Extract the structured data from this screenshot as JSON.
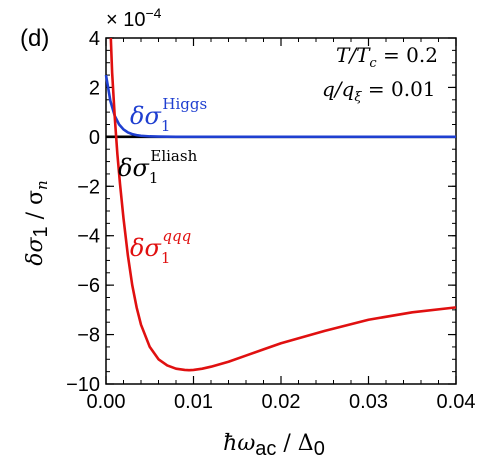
{
  "chart_data": {
    "type": "line",
    "panel_label": "(d)",
    "y_multiplier": "× 10",
    "y_multiplier_exp": "−4",
    "xlabel": "ħω",
    "xlabel_sub": "ac",
    "xlabel_rest": " / Δ",
    "xlabel_sub2": "0",
    "ylabel": "δσ",
    "ylabel_sub": "1",
    "ylabel_rest": " / σ",
    "ylabel_sub2": "n",
    "xlim": [
      0,
      0.04
    ],
    "ylim": [
      -10,
      4
    ],
    "x_ticks": [
      "0.00",
      "0.01",
      "0.02",
      "0.03",
      "0.04"
    ],
    "x_tick_values": [
      0,
      0.01,
      0.02,
      0.03,
      0.04
    ],
    "y_ticks": [
      "4",
      "2",
      "0",
      "−2",
      "−4",
      "−6",
      "−8",
      "−10"
    ],
    "y_tick_values": [
      4,
      2,
      0,
      -2,
      -4,
      -6,
      -8,
      -10
    ],
    "annotations": {
      "temp": "T/T",
      "temp_sub": "c",
      "temp_val": " = 0.2",
      "q": "q/q",
      "q_sub": "ξ",
      "q_val": " = 0.01"
    },
    "series": [
      {
        "label": "δσ",
        "label_sub": "1",
        "label_sup": "Higgs",
        "color": "#1f3fd0",
        "x": [
          0,
          0.0005,
          0.001,
          0.0015,
          0.002,
          0.0025,
          0.003,
          0.0035,
          0.004,
          0.005,
          0.006,
          0.008,
          0.01,
          0.015,
          0.02,
          0.03,
          0.04
        ],
        "y": [
          2.5,
          1.45,
          0.85,
          0.5,
          0.3,
          0.18,
          0.11,
          0.07,
          0.045,
          0.02,
          0.01,
          0.003,
          0.001,
          0,
          0,
          0,
          0
        ]
      },
      {
        "label": "δσ",
        "label_sub": "1",
        "label_sup": "Eliash",
        "color": "#000000",
        "x": [
          0,
          0.04
        ],
        "y": [
          0,
          0
        ]
      },
      {
        "label": "δσ",
        "label_sub": "1",
        "label_sup": "qqq",
        "color": "#e01010",
        "x": [
          0.00055,
          0.0007,
          0.001,
          0.0013,
          0.0016,
          0.002,
          0.0025,
          0.003,
          0.0035,
          0.004,
          0.005,
          0.006,
          0.007,
          0.008,
          0.009,
          0.0095,
          0.01,
          0.011,
          0.012,
          0.014,
          0.016,
          0.018,
          0.02,
          0.025,
          0.03,
          0.035,
          0.04
        ],
        "y": [
          4.0,
          2.6,
          0.8,
          -0.7,
          -1.9,
          -3.3,
          -4.8,
          -6.0,
          -6.9,
          -7.6,
          -8.5,
          -9.0,
          -9.25,
          -9.38,
          -9.43,
          -9.44,
          -9.43,
          -9.38,
          -9.3,
          -9.1,
          -8.85,
          -8.6,
          -8.35,
          -7.85,
          -7.4,
          -7.1,
          -6.9
        ]
      }
    ]
  }
}
